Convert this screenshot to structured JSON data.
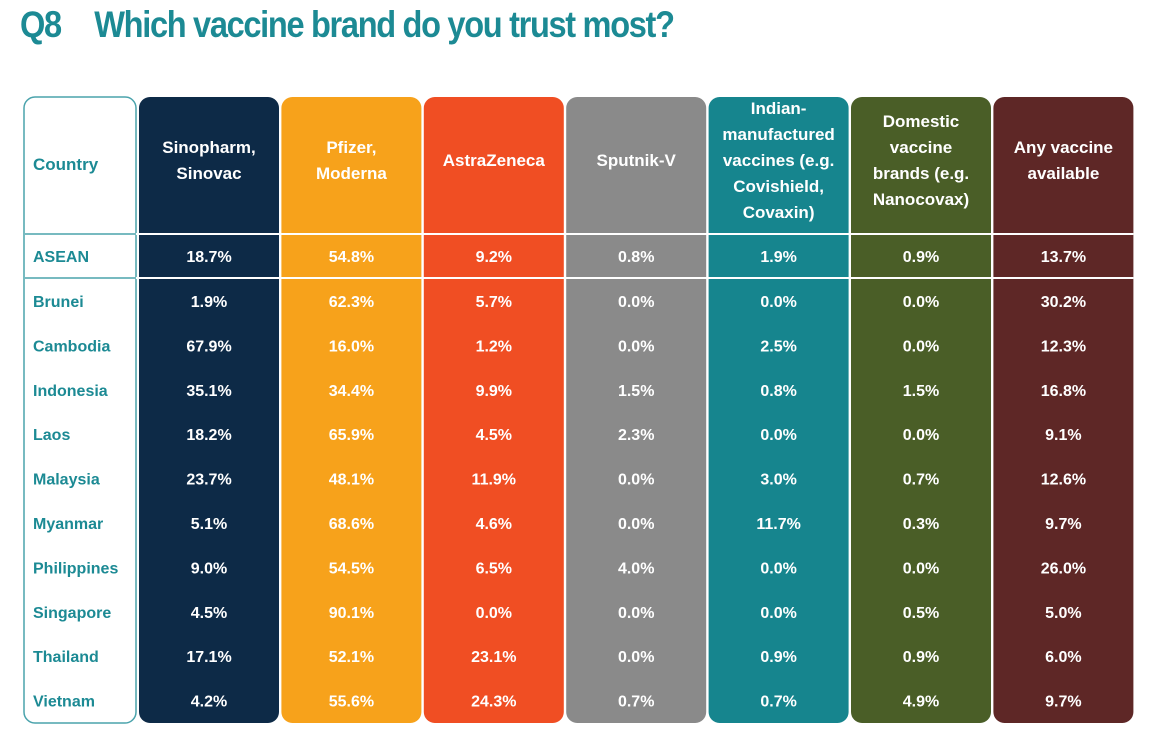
{
  "question": {
    "number": "Q8",
    "text": "Which vaccine brand do you trust most?"
  },
  "colors": {
    "title": "#1c8a94",
    "country_text": "#1c8a94",
    "country_border": "#4aa3ac",
    "cell_text": "#ffffff",
    "columns": [
      "#0d2a47",
      "#f7a21b",
      "#f04e23",
      "#8a8a8a",
      "#16858e",
      "#4a5e27",
      "#5e2726"
    ]
  },
  "chart_data": {
    "type": "table",
    "row_header_label": "Country",
    "columns": [
      "Sinopharm, Sinovac",
      "Pfizer, Moderna",
      "AstraZeneca",
      "Sputnik-V",
      "Indian-manufactured vaccines (e.g. Covishield, Covaxin)",
      "Domestic vaccine brands (e.g. Nanocovax)",
      "Any vaccine available"
    ],
    "column_header_lines": [
      [
        "Sinopharm,",
        "Sinovac"
      ],
      [
        "Pfizer,",
        "Moderna"
      ],
      [
        "AstraZeneca"
      ],
      [
        "Sputnik-V"
      ],
      [
        "Indian-",
        "manufactured",
        "vaccines (e.g.",
        "Covishield,",
        "Covaxin)"
      ],
      [
        "Domestic",
        "vaccine",
        "brands (e.g.",
        "Nanocovax)"
      ],
      [
        "Any vaccine",
        "available"
      ]
    ],
    "unit": "%",
    "summary_row": {
      "label": "ASEAN",
      "values": [
        18.7,
        54.8,
        9.2,
        0.8,
        1.9,
        0.9,
        13.7
      ]
    },
    "rows": [
      {
        "label": "Brunei",
        "values": [
          1.9,
          62.3,
          5.7,
          0.0,
          0.0,
          0.0,
          30.2
        ]
      },
      {
        "label": "Cambodia",
        "values": [
          67.9,
          16.0,
          1.2,
          0.0,
          2.5,
          0.0,
          12.3
        ]
      },
      {
        "label": "Indonesia",
        "values": [
          35.1,
          34.4,
          9.9,
          1.5,
          0.8,
          1.5,
          16.8
        ]
      },
      {
        "label": "Laos",
        "values": [
          18.2,
          65.9,
          4.5,
          2.3,
          0.0,
          0.0,
          9.1
        ]
      },
      {
        "label": "Malaysia",
        "values": [
          23.7,
          48.1,
          11.9,
          0.0,
          3.0,
          0.7,
          12.6
        ]
      },
      {
        "label": "Myanmar",
        "values": [
          5.1,
          68.6,
          4.6,
          0.0,
          11.7,
          0.3,
          9.7
        ]
      },
      {
        "label": "Philippines",
        "values": [
          9.0,
          54.5,
          6.5,
          4.0,
          0.0,
          0.0,
          26.0
        ]
      },
      {
        "label": "Singapore",
        "values": [
          4.5,
          90.1,
          0.0,
          0.0,
          0.0,
          0.5,
          5.0
        ]
      },
      {
        "label": "Thailand",
        "values": [
          17.1,
          52.1,
          23.1,
          0.0,
          0.9,
          0.9,
          6.0
        ]
      },
      {
        "label": "Vietnam",
        "values": [
          4.2,
          55.6,
          24.3,
          0.7,
          0.7,
          4.9,
          9.7
        ]
      }
    ]
  }
}
